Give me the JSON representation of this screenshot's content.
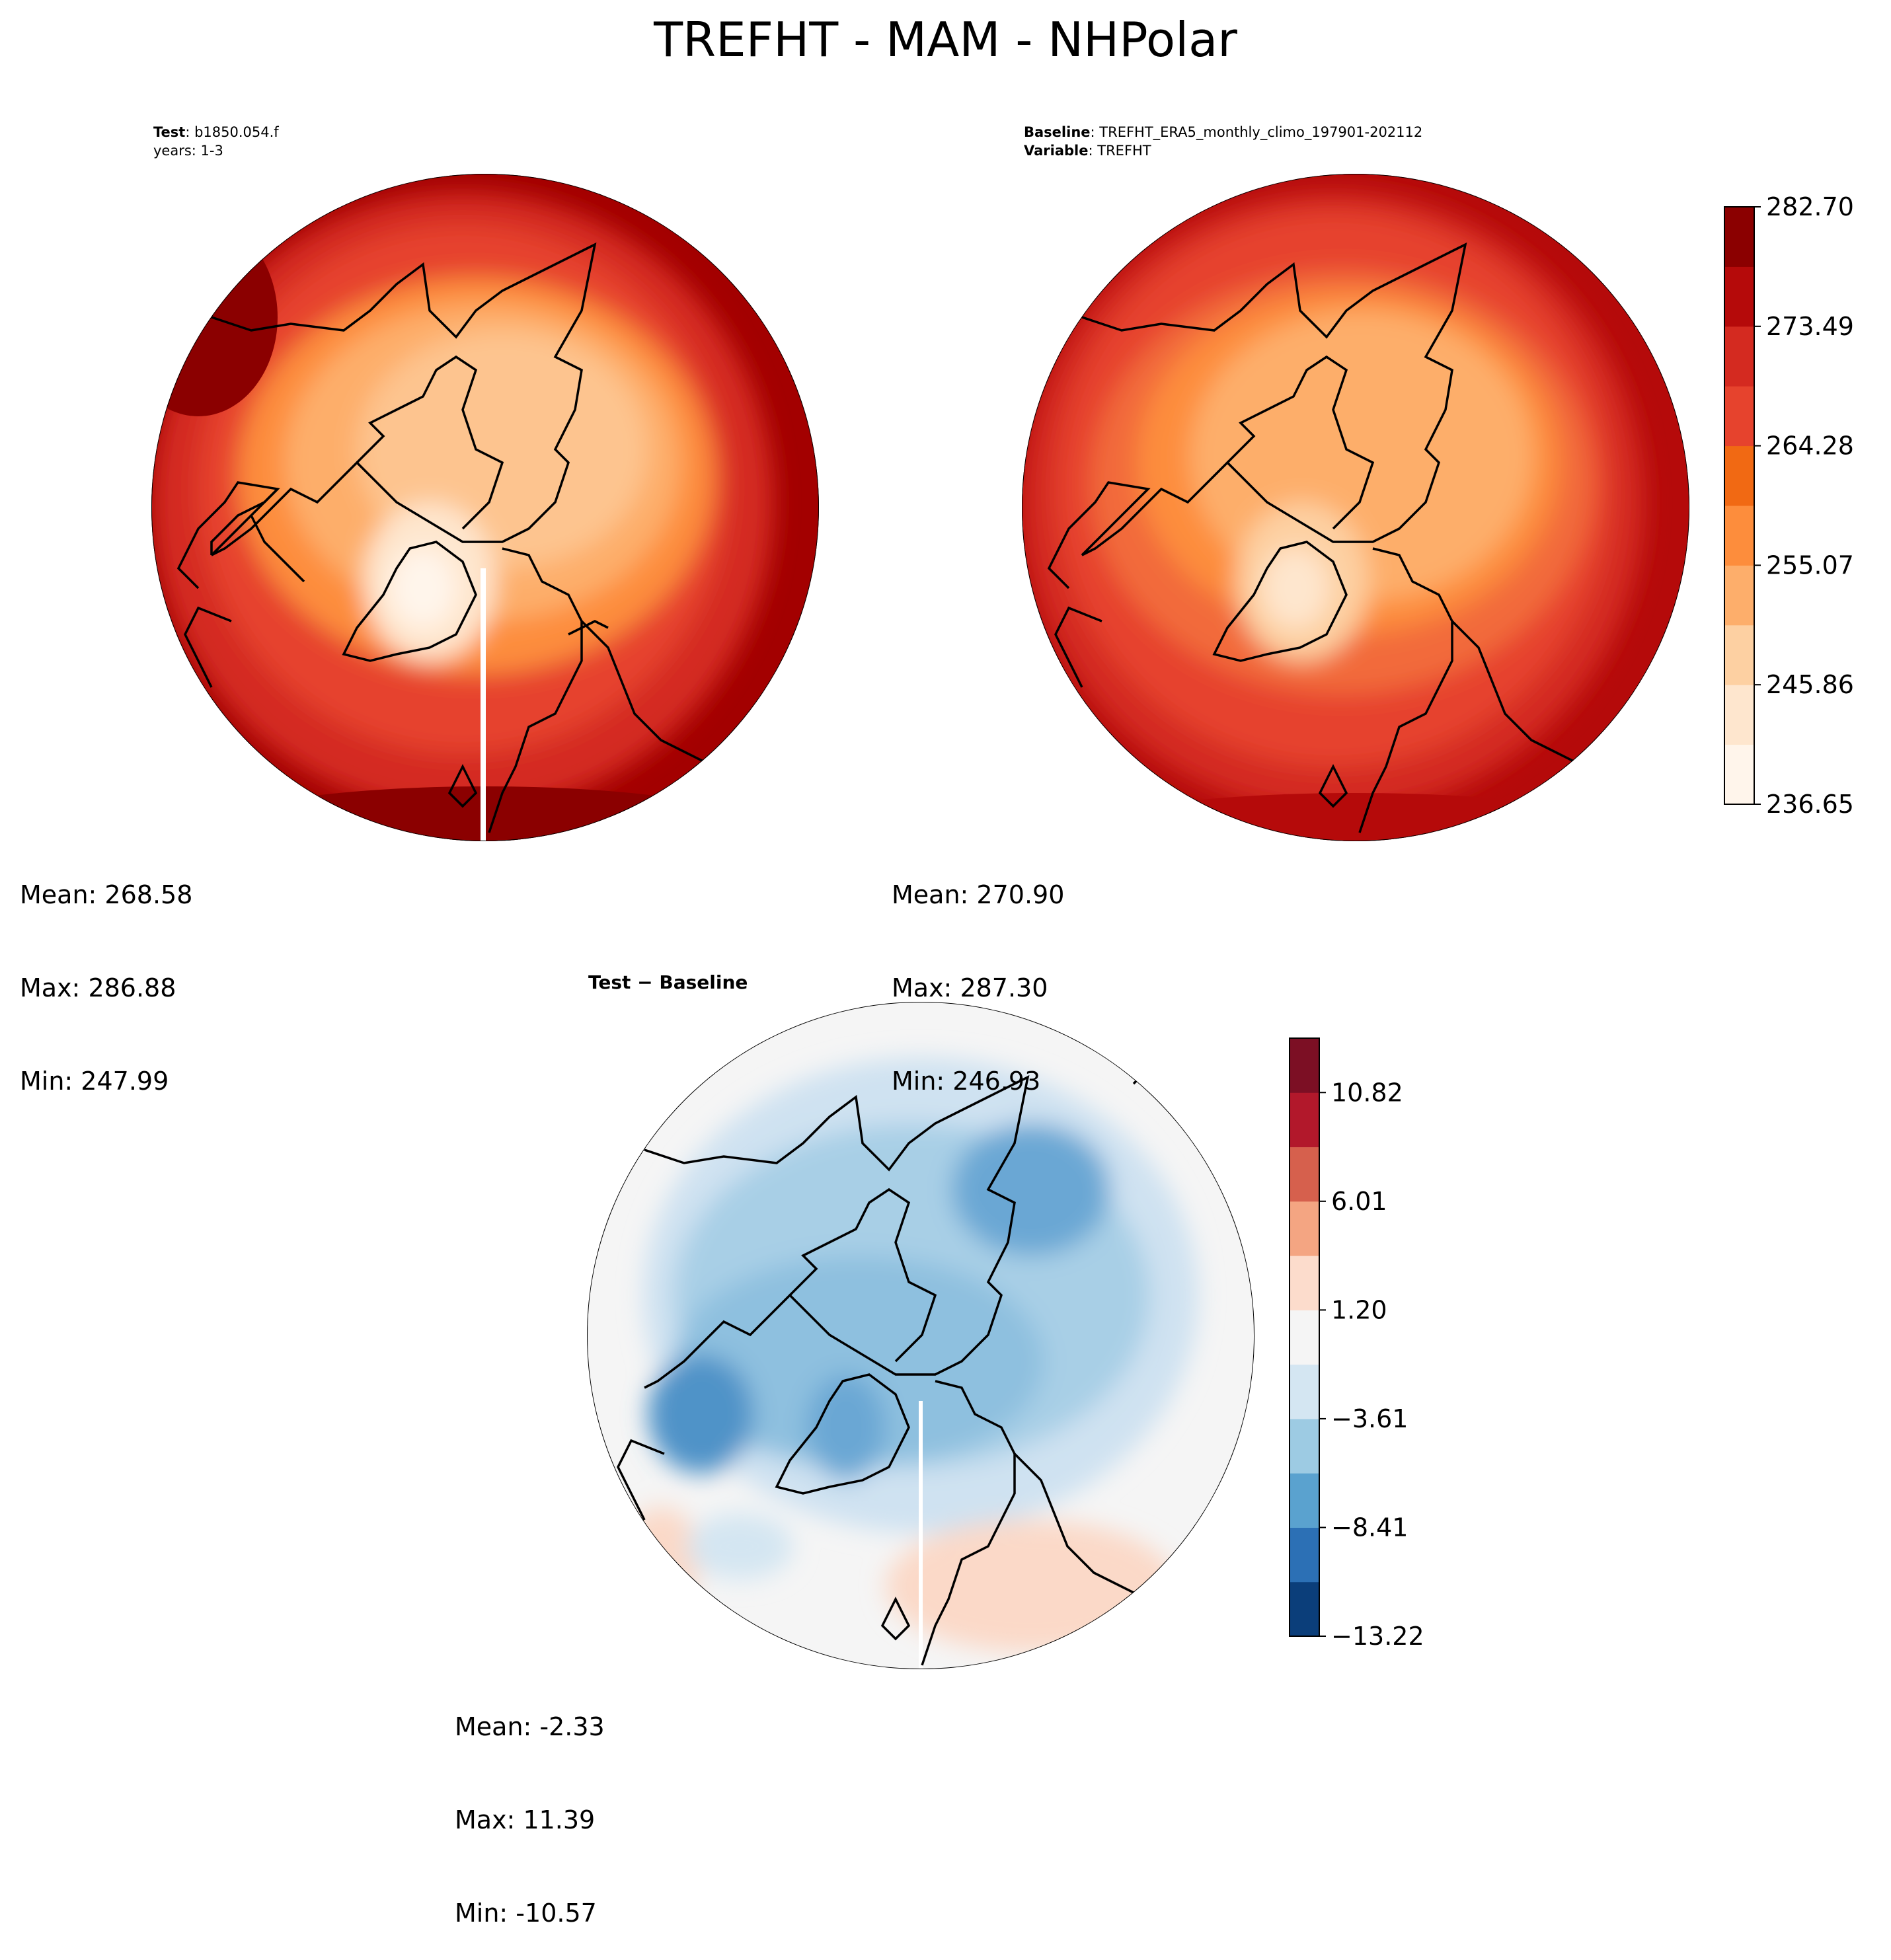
{
  "title": "TREFHT - MAM - NHPolar",
  "test_panel": {
    "label_bold": "Test",
    "label_value": "b1850.054.f",
    "years": "years: 1-3",
    "stats": [
      "Mean: 268.58",
      "Max: 286.88",
      "Min: 247.99"
    ]
  },
  "baseline_panel": {
    "baseline_bold": "Baseline",
    "baseline_value": "TREFHT_ERA5_monthly_climo_197901-202112",
    "variable_bold": "Variable",
    "variable_value": "TREFHT",
    "stats": [
      "Mean: 270.90",
      "Max: 287.30",
      "Min: 246.93"
    ]
  },
  "diff_panel": {
    "title": "Test − Baseline",
    "stats": [
      "Mean: -2.33",
      "Max: 11.39",
      "Min: -10.57"
    ]
  },
  "colorbar_main": {
    "ticks": [
      "282.70",
      "273.49",
      "264.28",
      "255.07",
      "245.86",
      "236.65"
    ],
    "colors": [
      "#fff5eb",
      "#fee6ce",
      "#fdd0a2",
      "#fdae6b",
      "#fd8d3c",
      "#f16913",
      "#e6432d",
      "#d42a20",
      "#b50a0a",
      "#8b0000"
    ]
  },
  "colorbar_diff": {
    "ticks": [
      "10.82",
      "6.01",
      "1.20",
      "−3.61",
      "−8.41",
      "−13.22"
    ],
    "colors": [
      "#0b3e7a",
      "#2c70b5",
      "#5aa2cf",
      "#9dcbe3",
      "#d4e6f2",
      "#f5f5f5",
      "#fcdccc",
      "#f4a582",
      "#d6604d",
      "#b2182b",
      "#7c0f24"
    ]
  },
  "map_colors": {
    "ocean_warm": "#a30000",
    "mid": "#e34a33",
    "cold": "#fdbb84",
    "coldest": "#fff0dc",
    "diff_neutral": "#f5f5f5",
    "diff_light_blue": "#cfe2f1",
    "diff_blue": "#8ec0df",
    "diff_dark_blue": "#4f93c8",
    "diff_light_red": "#fbd9c8"
  }
}
